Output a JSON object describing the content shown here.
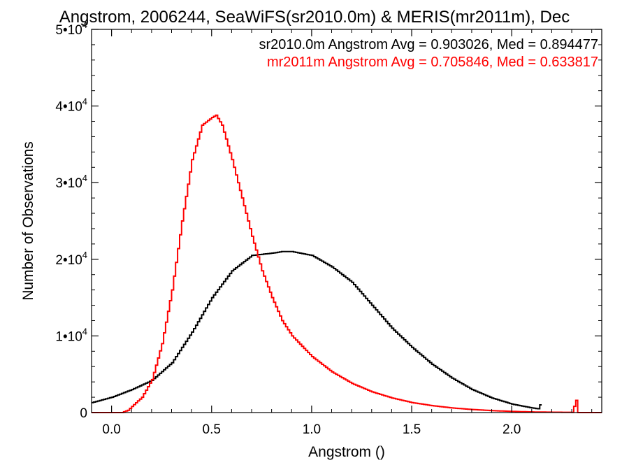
{
  "chart_data": {
    "type": "line",
    "title": "Angstrom, 2006244, SeaWiFS(sr2010.0m) & MERIS(mr2011m), Dec",
    "xlabel": "Angstrom ()",
    "ylabel": "Number of Observations",
    "xlim": [
      -0.1,
      2.45
    ],
    "ylim": [
      0,
      50000
    ],
    "xticks": [
      {
        "value": 0.0,
        "label": "0.0"
      },
      {
        "value": 0.5,
        "label": "0.5"
      },
      {
        "value": 1.0,
        "label": "1.0"
      },
      {
        "value": 1.5,
        "label": "1.5"
      },
      {
        "value": 2.0,
        "label": "2.0"
      }
    ],
    "yticks": [
      {
        "value": 0,
        "label": "0"
      },
      {
        "value": 10000,
        "label": "1•10",
        "sup": "4"
      },
      {
        "value": 20000,
        "label": "2•10",
        "sup": "4"
      },
      {
        "value": 30000,
        "label": "3•10",
        "sup": "4"
      },
      {
        "value": 40000,
        "label": "4•10",
        "sup": "4"
      },
      {
        "value": 50000,
        "label": "5•10",
        "sup": "4"
      }
    ],
    "grid": false,
    "annotations": [
      {
        "text": "sr2010.0m Angstrom Avg = 0.903026, Med = 0.894477",
        "color": "#000000"
      },
      {
        "text": "mr2011m Angstrom Avg = 0.705846, Med = 0.633817",
        "color": "#ff0000"
      }
    ],
    "series": [
      {
        "color": "#000000",
        "x": [
          -0.1,
          0.0,
          0.1,
          0.2,
          0.3,
          0.4,
          0.5,
          0.6,
          0.7,
          0.8,
          0.85,
          0.9,
          1.0,
          1.1,
          1.2,
          1.3,
          1.4,
          1.5,
          1.6,
          1.7,
          1.8,
          1.9,
          2.0,
          2.1,
          2.13,
          2.14,
          2.15
        ],
        "y": [
          1300,
          2000,
          3000,
          4200,
          6500,
          10500,
          15000,
          18500,
          20500,
          20800,
          21000,
          21000,
          20500,
          19000,
          17000,
          14000,
          11000,
          8500,
          6300,
          4500,
          3000,
          1900,
          1100,
          600,
          500,
          1000,
          0
        ]
      },
      {
        "color": "#ff0000",
        "x": [
          -0.1,
          0.05,
          0.08,
          0.1,
          0.15,
          0.2,
          0.25,
          0.3,
          0.35,
          0.4,
          0.45,
          0.5,
          0.52,
          0.55,
          0.6,
          0.65,
          0.7,
          0.75,
          0.8,
          0.85,
          0.9,
          1.0,
          1.1,
          1.2,
          1.3,
          1.4,
          1.5,
          1.6,
          1.7,
          1.8,
          1.9,
          2.0,
          2.1,
          2.2,
          2.3,
          2.32,
          2.33,
          2.34,
          2.45
        ],
        "y": [
          0,
          0,
          300,
          800,
          2000,
          4300,
          9000,
          16000,
          25000,
          33000,
          37500,
          38500,
          38800,
          37500,
          33000,
          28000,
          23000,
          18500,
          15000,
          12000,
          10000,
          7300,
          5300,
          3800,
          2700,
          1900,
          1300,
          900,
          600,
          400,
          250,
          150,
          80,
          50,
          30,
          1600,
          0,
          0,
          0
        ]
      }
    ]
  }
}
